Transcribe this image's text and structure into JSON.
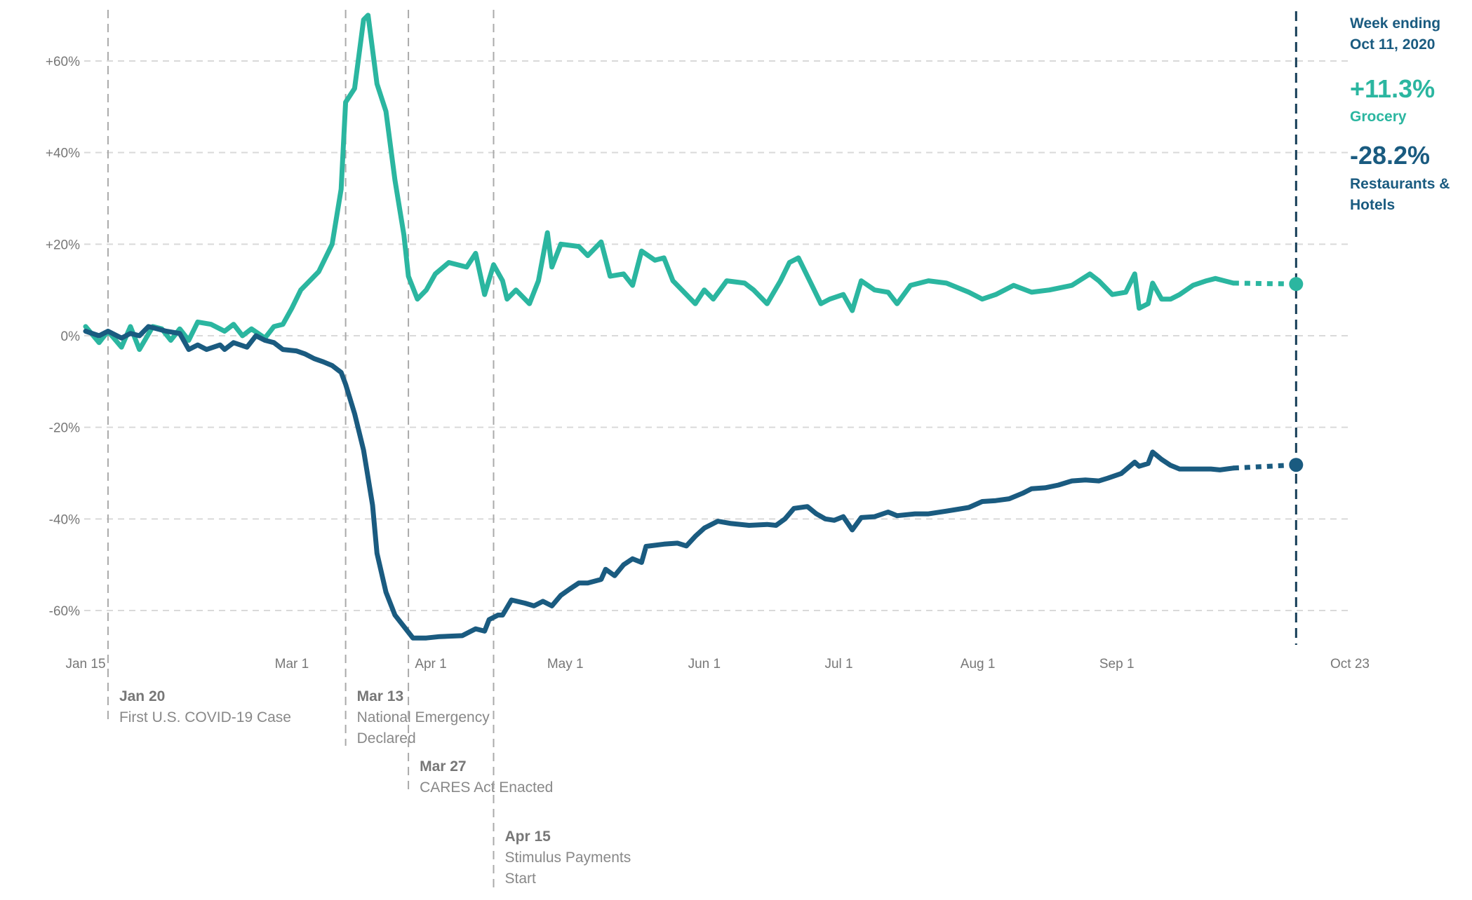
{
  "chart_data": {
    "type": "line",
    "xlabel": "",
    "ylabel": "",
    "xlim": [
      "2020-01-15",
      "2020-10-23"
    ],
    "ylim": [
      -70,
      72
    ],
    "grid": "horizontal dashed",
    "y_ticks": [
      {
        "value": 60,
        "label": "+60%"
      },
      {
        "value": 40,
        "label": "+40%"
      },
      {
        "value": 20,
        "label": "+20%"
      },
      {
        "value": 0,
        "label": "0%"
      },
      {
        "value": -20,
        "label": "-20%"
      },
      {
        "value": -40,
        "label": "-40%"
      },
      {
        "value": -60,
        "label": "-60%"
      }
    ],
    "x_ticks": [
      {
        "date": "2020-01-15",
        "label": "Jan 15"
      },
      {
        "date": "2020-03-01",
        "label": "Mar 1"
      },
      {
        "date": "2020-04-01",
        "label": "Apr 1"
      },
      {
        "date": "2020-05-01",
        "label": "May 1"
      },
      {
        "date": "2020-06-01",
        "label": "Jun 1"
      },
      {
        "date": "2020-07-01",
        "label": "Jul 1"
      },
      {
        "date": "2020-08-01",
        "label": "Aug 1"
      },
      {
        "date": "2020-09-01",
        "label": "Sep 1"
      },
      {
        "date": "2020-10-23",
        "label": "Oct 23"
      }
    ],
    "events": [
      {
        "date": "2020-01-20",
        "title": "Jan 20",
        "lines": [
          "First U.S. COVID-19 Case"
        ]
      },
      {
        "date": "2020-03-13",
        "title": "Mar 13",
        "lines": [
          "National Emergency",
          "Declared"
        ]
      },
      {
        "date": "2020-03-27",
        "title": "Mar 27",
        "lines": [
          "CARES Act Enacted"
        ]
      },
      {
        "date": "2020-04-15",
        "title": "Apr 15",
        "lines": [
          "Stimulus Payments",
          "Start"
        ]
      }
    ],
    "marker_date": "2020-10-11",
    "side_panel": {
      "heading_line1": "Week ending",
      "heading_line2": "Oct 11, 2020",
      "grocery_value": "+11.3%",
      "grocery_label": "Grocery",
      "restaurants_value": "-28.2%",
      "restaurants_label_line1": "Restaurants &",
      "restaurants_label_line2": "Hotels"
    },
    "series": [
      {
        "name": "Grocery",
        "color": "#2bb6a0",
        "projected": [
          [
            "2020-09-27",
            11.5
          ],
          [
            "2020-10-11",
            11.3
          ]
        ],
        "points": [
          [
            "2020-01-15",
            2
          ],
          [
            "2020-01-18",
            -1.5
          ],
          [
            "2020-01-20",
            1
          ],
          [
            "2020-01-23",
            -2.5
          ],
          [
            "2020-01-25",
            2
          ],
          [
            "2020-01-27",
            -3
          ],
          [
            "2020-01-30",
            2
          ],
          [
            "2020-02-01",
            1.5
          ],
          [
            "2020-02-03",
            -1
          ],
          [
            "2020-02-05",
            1.5
          ],
          [
            "2020-02-07",
            -1
          ],
          [
            "2020-02-09",
            3
          ],
          [
            "2020-02-12",
            2.5
          ],
          [
            "2020-02-15",
            1
          ],
          [
            "2020-02-17",
            2.5
          ],
          [
            "2020-02-19",
            0
          ],
          [
            "2020-02-21",
            1.5
          ],
          [
            "2020-02-24",
            -0.5
          ],
          [
            "2020-02-26",
            2
          ],
          [
            "2020-02-28",
            2.5
          ],
          [
            "2020-03-01",
            6
          ],
          [
            "2020-03-03",
            10
          ],
          [
            "2020-03-07",
            14
          ],
          [
            "2020-03-10",
            20
          ],
          [
            "2020-03-12",
            32
          ],
          [
            "2020-03-13",
            51
          ],
          [
            "2020-03-15",
            54
          ],
          [
            "2020-03-17",
            69
          ],
          [
            "2020-03-18",
            70
          ],
          [
            "2020-03-20",
            55
          ],
          [
            "2020-03-22",
            49
          ],
          [
            "2020-03-24",
            34
          ],
          [
            "2020-03-26",
            22
          ],
          [
            "2020-03-27",
            13
          ],
          [
            "2020-03-29",
            8
          ],
          [
            "2020-03-31",
            10
          ],
          [
            "2020-04-02",
            13.5
          ],
          [
            "2020-04-05",
            16
          ],
          [
            "2020-04-09",
            15
          ],
          [
            "2020-04-11",
            18
          ],
          [
            "2020-04-13",
            9
          ],
          [
            "2020-04-15",
            15.5
          ],
          [
            "2020-04-17",
            12
          ],
          [
            "2020-04-18",
            8
          ],
          [
            "2020-04-20",
            10
          ],
          [
            "2020-04-21",
            9
          ],
          [
            "2020-04-23",
            7
          ],
          [
            "2020-04-25",
            12
          ],
          [
            "2020-04-27",
            22.5
          ],
          [
            "2020-04-28",
            15
          ],
          [
            "2020-04-30",
            20
          ],
          [
            "2020-05-04",
            19.5
          ],
          [
            "2020-05-06",
            17.5
          ],
          [
            "2020-05-09",
            20.5
          ],
          [
            "2020-05-11",
            13
          ],
          [
            "2020-05-14",
            13.5
          ],
          [
            "2020-05-16",
            11
          ],
          [
            "2020-05-18",
            18.5
          ],
          [
            "2020-05-21",
            16.5
          ],
          [
            "2020-05-23",
            17
          ],
          [
            "2020-05-25",
            12
          ],
          [
            "2020-05-27",
            10
          ],
          [
            "2020-05-30",
            7
          ],
          [
            "2020-06-01",
            10
          ],
          [
            "2020-06-03",
            8
          ],
          [
            "2020-06-06",
            12
          ],
          [
            "2020-06-10",
            11.5
          ],
          [
            "2020-06-12",
            10
          ],
          [
            "2020-06-15",
            7
          ],
          [
            "2020-06-18",
            12
          ],
          [
            "2020-06-20",
            16
          ],
          [
            "2020-06-22",
            17
          ],
          [
            "2020-06-25",
            11
          ],
          [
            "2020-06-27",
            7
          ],
          [
            "2020-06-29",
            8
          ],
          [
            "2020-07-02",
            9
          ],
          [
            "2020-07-04",
            5.5
          ],
          [
            "2020-07-06",
            12
          ],
          [
            "2020-07-09",
            10
          ],
          [
            "2020-07-12",
            9.5
          ],
          [
            "2020-07-14",
            7
          ],
          [
            "2020-07-17",
            11
          ],
          [
            "2020-07-21",
            12
          ],
          [
            "2020-07-25",
            11.5
          ],
          [
            "2020-07-30",
            9.5
          ],
          [
            "2020-08-02",
            8
          ],
          [
            "2020-08-05",
            9
          ],
          [
            "2020-08-09",
            11
          ],
          [
            "2020-08-13",
            9.5
          ],
          [
            "2020-08-17",
            10
          ],
          [
            "2020-08-22",
            11
          ],
          [
            "2020-08-26",
            13.5
          ],
          [
            "2020-08-28",
            12
          ],
          [
            "2020-08-31",
            9
          ],
          [
            "2020-09-03",
            9.5
          ],
          [
            "2020-09-05",
            13.5
          ],
          [
            "2020-09-06",
            6
          ],
          [
            "2020-09-08",
            7
          ],
          [
            "2020-09-09",
            11.5
          ],
          [
            "2020-09-11",
            8
          ],
          [
            "2020-09-13",
            8
          ],
          [
            "2020-09-15",
            9
          ],
          [
            "2020-09-18",
            11
          ],
          [
            "2020-09-21",
            12
          ],
          [
            "2020-09-23",
            12.5
          ],
          [
            "2020-09-25",
            12
          ],
          [
            "2020-09-27",
            11.5
          ]
        ]
      },
      {
        "name": "Restaurants & Hotels",
        "color": "#1a5b80",
        "projected": [
          [
            "2020-09-27",
            -28.9
          ],
          [
            "2020-10-11",
            -28.2
          ]
        ],
        "points": [
          [
            "2020-01-15",
            1
          ],
          [
            "2020-01-18",
            0
          ],
          [
            "2020-01-20",
            1
          ],
          [
            "2020-01-23",
            -0.5
          ],
          [
            "2020-01-25",
            0.5
          ],
          [
            "2020-01-27",
            0
          ],
          [
            "2020-01-29",
            2
          ],
          [
            "2020-02-02",
            1
          ],
          [
            "2020-02-05",
            0.5
          ],
          [
            "2020-02-07",
            -3
          ],
          [
            "2020-02-09",
            -2
          ],
          [
            "2020-02-11",
            -3
          ],
          [
            "2020-02-14",
            -2
          ],
          [
            "2020-02-15",
            -3
          ],
          [
            "2020-02-17",
            -1.5
          ],
          [
            "2020-02-20",
            -2.5
          ],
          [
            "2020-02-22",
            0
          ],
          [
            "2020-02-24",
            -1
          ],
          [
            "2020-02-26",
            -1.5
          ],
          [
            "2020-02-28",
            -3
          ],
          [
            "2020-03-02",
            -3.3
          ],
          [
            "2020-03-04",
            -4
          ],
          [
            "2020-03-06",
            -5
          ],
          [
            "2020-03-08",
            -5.7
          ],
          [
            "2020-03-10",
            -6.5
          ],
          [
            "2020-03-12",
            -8
          ],
          [
            "2020-03-13",
            -10.6
          ],
          [
            "2020-03-15",
            -17
          ],
          [
            "2020-03-17",
            -25
          ],
          [
            "2020-03-19",
            -37
          ],
          [
            "2020-03-20",
            -47.5
          ],
          [
            "2020-03-22",
            -56
          ],
          [
            "2020-03-24",
            -61
          ],
          [
            "2020-03-26",
            -63.5
          ],
          [
            "2020-03-28",
            -66
          ],
          [
            "2020-03-31",
            -66
          ],
          [
            "2020-04-03",
            -65.7
          ],
          [
            "2020-04-08",
            -65.5
          ],
          [
            "2020-04-10",
            -64.5
          ],
          [
            "2020-04-11",
            -64
          ],
          [
            "2020-04-13",
            -64.5
          ],
          [
            "2020-04-14",
            -62
          ],
          [
            "2020-04-16",
            -61
          ],
          [
            "2020-04-17",
            -61
          ],
          [
            "2020-04-19",
            -57.7
          ],
          [
            "2020-04-22",
            -58.4
          ],
          [
            "2020-04-24",
            -59
          ],
          [
            "2020-04-26",
            -58
          ],
          [
            "2020-04-28",
            -59
          ],
          [
            "2020-04-30",
            -56.7
          ],
          [
            "2020-05-02",
            -55.3
          ],
          [
            "2020-05-04",
            -54
          ],
          [
            "2020-05-06",
            -54
          ],
          [
            "2020-05-09",
            -53.2
          ],
          [
            "2020-05-10",
            -51
          ],
          [
            "2020-05-12",
            -52.4
          ],
          [
            "2020-05-14",
            -50
          ],
          [
            "2020-05-16",
            -48.7
          ],
          [
            "2020-05-18",
            -49.5
          ],
          [
            "2020-05-19",
            -46
          ],
          [
            "2020-05-23",
            -45.5
          ],
          [
            "2020-05-26",
            -45.3
          ],
          [
            "2020-05-28",
            -45.9
          ],
          [
            "2020-05-30",
            -43.8
          ],
          [
            "2020-06-01",
            -42
          ],
          [
            "2020-06-04",
            -40.5
          ],
          [
            "2020-06-07",
            -41
          ],
          [
            "2020-06-11",
            -41.4
          ],
          [
            "2020-06-15",
            -41.2
          ],
          [
            "2020-06-17",
            -41.4
          ],
          [
            "2020-06-19",
            -40
          ],
          [
            "2020-06-21",
            -37.7
          ],
          [
            "2020-06-24",
            -37.3
          ],
          [
            "2020-06-26",
            -38.9
          ],
          [
            "2020-06-28",
            -40
          ],
          [
            "2020-06-30",
            -40.3
          ],
          [
            "2020-07-02",
            -39.5
          ],
          [
            "2020-07-04",
            -42.4
          ],
          [
            "2020-07-06",
            -39.7
          ],
          [
            "2020-07-09",
            -39.5
          ],
          [
            "2020-07-12",
            -38.5
          ],
          [
            "2020-07-14",
            -39.3
          ],
          [
            "2020-07-18",
            -38.9
          ],
          [
            "2020-07-21",
            -38.9
          ],
          [
            "2020-07-25",
            -38.3
          ],
          [
            "2020-07-30",
            -37.5
          ],
          [
            "2020-08-02",
            -36.2
          ],
          [
            "2020-08-05",
            -36
          ],
          [
            "2020-08-08",
            -35.6
          ],
          [
            "2020-08-11",
            -34.4
          ],
          [
            "2020-08-13",
            -33.4
          ],
          [
            "2020-08-16",
            -33.2
          ],
          [
            "2020-08-19",
            -32.6
          ],
          [
            "2020-08-22",
            -31.7
          ],
          [
            "2020-08-25",
            -31.5
          ],
          [
            "2020-08-28",
            -31.7
          ],
          [
            "2020-08-30",
            -31.1
          ],
          [
            "2020-09-02",
            -30.1
          ],
          [
            "2020-09-05",
            -27.6
          ],
          [
            "2020-09-06",
            -28.5
          ],
          [
            "2020-09-08",
            -27.9
          ],
          [
            "2020-09-09",
            -25.4
          ],
          [
            "2020-09-11",
            -27
          ],
          [
            "2020-09-13",
            -28.3
          ],
          [
            "2020-09-15",
            -29.1
          ],
          [
            "2020-09-18",
            -29.1
          ],
          [
            "2020-09-22",
            -29.1
          ],
          [
            "2020-09-24",
            -29.3
          ],
          [
            "2020-09-27",
            -28.9
          ]
        ]
      }
    ]
  },
  "colors": {
    "grocery": "#2bb6a0",
    "restaurants": "#1a5b80",
    "marker_line": "#163d57",
    "grid": "#d9d9d9",
    "event_line": "#aaaaaa",
    "text": "#777777"
  }
}
